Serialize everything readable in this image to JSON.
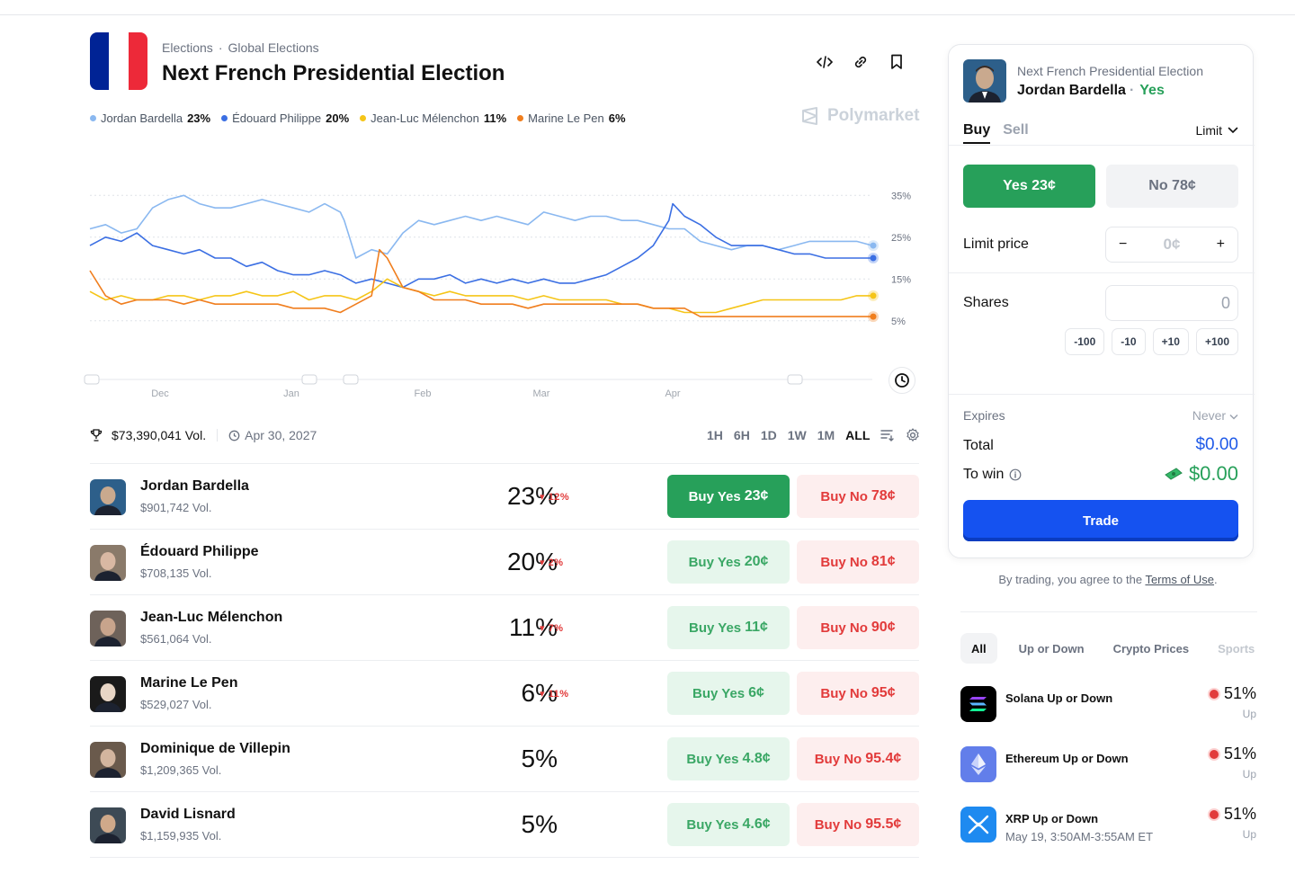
{
  "header": {
    "breadcrumb": [
      "Elections",
      "·",
      "Global Elections"
    ],
    "title": "Next French Presidential Election",
    "brand": "Polymarket",
    "flag_colors": [
      "#002395",
      "#ffffff",
      "#ED2939"
    ]
  },
  "legend": [
    {
      "name": "Jordan Bardella",
      "value": "23%",
      "color": "#8ab8f0"
    },
    {
      "name": "Édouard Philippe",
      "value": "20%",
      "color": "#3b6fe3"
    },
    {
      "name": "Jean-Luc Mélenchon",
      "value": "11%",
      "color": "#f5c518"
    },
    {
      "name": "Marine Le Pen",
      "value": "6%",
      "color": "#f07e1e"
    }
  ],
  "chart_data": {
    "type": "line",
    "x_ticks": [
      "Dec",
      "Jan",
      "Feb",
      "Mar",
      "Apr"
    ],
    "y_ticks": [
      "35%",
      "25%",
      "15%",
      "5%"
    ],
    "ylim": [
      0,
      37
    ],
    "grid": true,
    "series": [
      {
        "name": "Jordan Bardella",
        "color": "#8ab8f0",
        "x": [
          0,
          0.02,
          0.04,
          0.06,
          0.08,
          0.1,
          0.12,
          0.14,
          0.16,
          0.18,
          0.2,
          0.22,
          0.24,
          0.26,
          0.28,
          0.3,
          0.32,
          0.325,
          0.34,
          0.36,
          0.38,
          0.4,
          0.42,
          0.44,
          0.46,
          0.48,
          0.5,
          0.52,
          0.54,
          0.56,
          0.58,
          0.6,
          0.62,
          0.64,
          0.66,
          0.68,
          0.7,
          0.72,
          0.74,
          0.76,
          0.78,
          0.8,
          0.82,
          0.84,
          0.86,
          0.88,
          0.9,
          0.92,
          0.94,
          0.96,
          0.98,
          1.0
        ],
        "y": [
          27,
          28,
          26,
          27,
          32,
          34,
          35,
          33,
          32,
          32,
          33,
          34,
          33,
          32,
          31,
          33,
          31,
          29,
          20,
          22,
          21,
          26,
          29,
          28,
          29,
          30,
          29,
          30,
          29,
          28,
          31,
          30,
          29,
          30,
          30,
          29,
          29,
          28,
          27,
          27,
          24,
          23,
          22,
          23,
          23,
          22,
          23,
          24,
          24,
          24,
          24,
          23
        ]
      },
      {
        "name": "Édouard Philippe",
        "color": "#3b6fe3",
        "x": [
          0,
          0.02,
          0.04,
          0.06,
          0.08,
          0.1,
          0.12,
          0.14,
          0.16,
          0.18,
          0.2,
          0.22,
          0.24,
          0.26,
          0.28,
          0.3,
          0.32,
          0.34,
          0.36,
          0.38,
          0.4,
          0.42,
          0.44,
          0.46,
          0.48,
          0.5,
          0.52,
          0.54,
          0.56,
          0.58,
          0.6,
          0.62,
          0.64,
          0.66,
          0.68,
          0.7,
          0.72,
          0.74,
          0.745,
          0.76,
          0.78,
          0.8,
          0.82,
          0.84,
          0.86,
          0.88,
          0.9,
          0.92,
          0.94,
          0.96,
          0.98,
          1.0
        ],
        "y": [
          23,
          25,
          24,
          26,
          23,
          22,
          21,
          22,
          20,
          20,
          18,
          19,
          17,
          16,
          16,
          17,
          16,
          14,
          15,
          14,
          13,
          15,
          15,
          16,
          14,
          15,
          14,
          15,
          14,
          15,
          14,
          14,
          15,
          16,
          18,
          20,
          23,
          29,
          33,
          30,
          28,
          25,
          23,
          23,
          23,
          22,
          21,
          21,
          20,
          20,
          20,
          20
        ]
      },
      {
        "name": "Jean-Luc Mélenchon",
        "color": "#f5c518",
        "x": [
          0,
          0.02,
          0.04,
          0.06,
          0.08,
          0.1,
          0.12,
          0.14,
          0.16,
          0.18,
          0.2,
          0.22,
          0.24,
          0.26,
          0.28,
          0.3,
          0.32,
          0.34,
          0.36,
          0.38,
          0.4,
          0.42,
          0.44,
          0.46,
          0.48,
          0.5,
          0.52,
          0.54,
          0.56,
          0.58,
          0.6,
          0.62,
          0.64,
          0.66,
          0.68,
          0.7,
          0.72,
          0.74,
          0.76,
          0.78,
          0.8,
          0.82,
          0.84,
          0.86,
          0.88,
          0.9,
          0.92,
          0.94,
          0.96,
          0.98,
          1.0
        ],
        "y": [
          12,
          10,
          11,
          10,
          10,
          11,
          11,
          10,
          11,
          11,
          12,
          11,
          11,
          12,
          10,
          11,
          11,
          10,
          12,
          15,
          13,
          12,
          11,
          12,
          11,
          11,
          11,
          11,
          10,
          11,
          10,
          10,
          10,
          10,
          9,
          9,
          8,
          8,
          7,
          7,
          7,
          8,
          9,
          10,
          10,
          10,
          10,
          10,
          10,
          11,
          11
        ]
      },
      {
        "name": "Marine Le Pen",
        "color": "#f07e1e",
        "x": [
          0,
          0.02,
          0.04,
          0.06,
          0.08,
          0.1,
          0.12,
          0.14,
          0.16,
          0.18,
          0.2,
          0.22,
          0.24,
          0.26,
          0.28,
          0.3,
          0.32,
          0.34,
          0.36,
          0.37,
          0.38,
          0.4,
          0.42,
          0.44,
          0.46,
          0.48,
          0.5,
          0.52,
          0.54,
          0.56,
          0.58,
          0.6,
          0.62,
          0.64,
          0.66,
          0.68,
          0.7,
          0.72,
          0.74,
          0.76,
          0.78,
          0.8,
          0.82,
          0.84,
          0.86,
          0.88,
          0.9,
          0.92,
          0.94,
          0.96,
          0.98,
          1.0
        ],
        "y": [
          17,
          11,
          9,
          10,
          10,
          10,
          9,
          10,
          9,
          9,
          9,
          9,
          9,
          8,
          8,
          8,
          7,
          9,
          11,
          22,
          20,
          13,
          12,
          10,
          10,
          10,
          9,
          9,
          9,
          8,
          9,
          9,
          9,
          9,
          9,
          9,
          9,
          8,
          8,
          8,
          6,
          6,
          6,
          6,
          6,
          6,
          6,
          6,
          6,
          6,
          6,
          6
        ]
      }
    ]
  },
  "stats": {
    "volume": "$73,390,041 Vol.",
    "end_date": "Apr 30, 2027"
  },
  "ranges": [
    "1H",
    "6H",
    "1D",
    "1W",
    "1M",
    "ALL"
  ],
  "outcomes": [
    {
      "name": "Jordan Bardella",
      "vol": "$901,742 Vol.",
      "pct": "23%",
      "chg": "▾ 12%",
      "yes_prefix": "Buy Yes",
      "yes_price": "23¢",
      "no_prefix": "Buy No",
      "no_price": "78¢",
      "skin": "#c9a98e",
      "bg": "#2d5f8a"
    },
    {
      "name": "Édouard Philippe",
      "vol": "$708,135 Vol.",
      "pct": "20%",
      "chg": "▾ 2%",
      "yes_prefix": "Buy Yes",
      "yes_price": "20¢",
      "no_prefix": "Buy No",
      "no_price": "81¢",
      "skin": "#d9b8a3",
      "bg": "#8a7a6a"
    },
    {
      "name": "Jean-Luc Mélenchon",
      "vol": "$561,064 Vol.",
      "pct": "11%",
      "chg": "▾ 7%",
      "yes_prefix": "Buy Yes",
      "yes_price": "11¢",
      "no_prefix": "Buy No",
      "no_price": "90¢",
      "skin": "#c8a48c",
      "bg": "#6e625a"
    },
    {
      "name": "Marine Le Pen",
      "vol": "$529,027 Vol.",
      "pct": "6%",
      "chg": "▾ 11%",
      "yes_prefix": "Buy Yes",
      "yes_price": "6¢",
      "no_prefix": "Buy No",
      "no_price": "95¢",
      "skin": "#e8d6c6",
      "bg": "#1a1a1a"
    },
    {
      "name": "Dominique de Villepin",
      "vol": "$1,209,365 Vol.",
      "pct": "5%",
      "chg": "",
      "yes_prefix": "Buy Yes",
      "yes_price": "4.8¢",
      "no_prefix": "Buy No",
      "no_price": "95.4¢",
      "skin": "#d3b59e",
      "bg": "#6a5a4c"
    },
    {
      "name": "David Lisnard",
      "vol": "$1,159,935 Vol.",
      "pct": "5%",
      "chg": "",
      "yes_prefix": "Buy Yes",
      "yes_price": "4.6¢",
      "no_prefix": "Buy No",
      "no_price": "95.5¢",
      "skin": "#cfa98a",
      "bg": "#3d4a55"
    }
  ],
  "panel": {
    "subtitle": "Next French Presidential Election",
    "name": "Jordan Bardella",
    "dot": "·",
    "side": "Yes",
    "tab_buy": "Buy",
    "tab_sell": "Sell",
    "order_type": "Limit",
    "yes_btn": "Yes 23¢",
    "no_btn": "No 78¢",
    "limit_label": "Limit price",
    "limit_placeholder": "0¢",
    "shares_label": "Shares",
    "shares_value": "0",
    "qty_buttons": [
      "-100",
      "-10",
      "+10",
      "+100"
    ],
    "expires_label": "Expires",
    "expires_value": "Never",
    "total_label": "Total",
    "total_value": "$0.00",
    "win_label": "To win",
    "win_value": "$0.00",
    "trade_btn": "Trade"
  },
  "terms": {
    "prefix": "By trading, you agree to the",
    "link": "Terms of Use",
    "suffix": "."
  },
  "filters": [
    "All",
    "Up or Down",
    "Crypto Prices",
    "Sports"
  ],
  "markets": [
    {
      "title": "Solana Up or Down",
      "sub": "",
      "pct": "51%",
      "dir": "Up",
      "icon_bg": "#000000",
      "icon": "solana-icon"
    },
    {
      "title": "Ethereum Up or Down",
      "sub": "",
      "pct": "51%",
      "dir": "Up",
      "icon_bg": "#627eea",
      "icon": "ethereum-icon"
    },
    {
      "title": "XRP Up or Down",
      "sub": "May 19, 3:50AM-3:55AM ET",
      "pct": "51%",
      "dir": "Up",
      "icon_bg": "#1e8af0",
      "icon": "xrp-icon"
    }
  ]
}
